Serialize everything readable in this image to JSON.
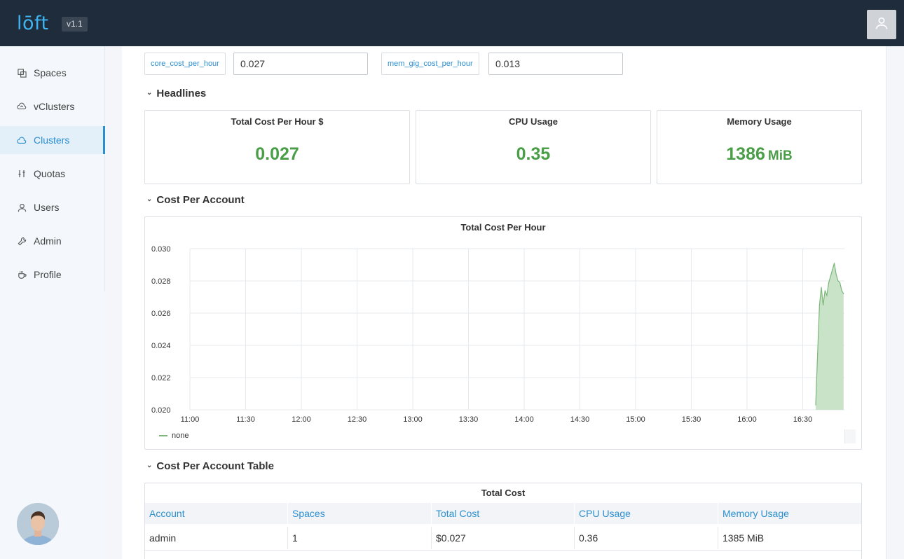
{
  "header": {
    "logo_text": "lōft",
    "version": "v1.1",
    "user_icon": "user-icon"
  },
  "sidebar": {
    "items": [
      {
        "label": "Spaces",
        "icon": "spaces-icon"
      },
      {
        "label": "vClusters",
        "icon": "vclusters-icon"
      },
      {
        "label": "Clusters",
        "icon": "cloud-icon",
        "active": true
      },
      {
        "label": "Quotas",
        "icon": "sliders-icon"
      },
      {
        "label": "Users",
        "icon": "user-icon"
      },
      {
        "label": "Admin",
        "icon": "wrench-icon"
      },
      {
        "label": "Profile",
        "icon": "coffee-icon"
      }
    ]
  },
  "variables": [
    {
      "label": "core_cost_per_hour",
      "value": "0.027"
    },
    {
      "label": "mem_gig_cost_per_hour",
      "value": "0.013"
    }
  ],
  "sections": {
    "headlines": "Headlines",
    "cost_per_account": "Cost Per Account",
    "cost_per_account_table": "Cost Per Account Table"
  },
  "stats": [
    {
      "title": "Total Cost Per Hour $",
      "value": "0.027",
      "unit": ""
    },
    {
      "title": "CPU Usage",
      "value": "0.35",
      "unit": ""
    },
    {
      "title": "Memory Usage",
      "value": "1386",
      "unit": "MiB"
    }
  ],
  "colors": {
    "accent": "#2c8fcf",
    "stat_value": "#4a9e48",
    "series_line": "#7cb77a",
    "series_fill": "#c9e3c8",
    "topbar": "#1f2c3c"
  },
  "chart_data": {
    "type": "area",
    "title": "Total Cost Per Hour",
    "xlabel": "",
    "ylabel": "",
    "x_ticks": [
      "11:00",
      "11:30",
      "12:00",
      "12:30",
      "13:00",
      "13:30",
      "14:00",
      "14:30",
      "15:00",
      "15:30",
      "16:00",
      "16:30"
    ],
    "y_ticks": [
      "0.020",
      "0.022",
      "0.024",
      "0.026",
      "0.028",
      "0.030"
    ],
    "ylim": [
      0.02,
      0.03
    ],
    "grid": true,
    "legend_position": "bottom-left",
    "series": [
      {
        "name": "none",
        "x": [
          "16:37",
          "16:38",
          "16:39",
          "16:40",
          "16:41",
          "16:42",
          "16:43",
          "16:44",
          "16:45",
          "16:46",
          "16:47",
          "16:48",
          "16:49",
          "16:50",
          "16:51",
          "16:52"
        ],
        "values": [
          0.0203,
          0.0235,
          0.0265,
          0.0276,
          0.0265,
          0.0274,
          0.0271,
          0.0279,
          0.0283,
          0.0287,
          0.0291,
          0.0284,
          0.028,
          0.0279,
          0.0274,
          0.0272
        ]
      }
    ]
  },
  "table": {
    "title": "Total Cost",
    "columns": [
      "Account",
      "Spaces",
      "Total Cost",
      "CPU Usage",
      "Memory Usage"
    ],
    "rows": [
      [
        "admin",
        "1",
        "$0.027",
        "0.36",
        "1385 MiB"
      ]
    ]
  }
}
